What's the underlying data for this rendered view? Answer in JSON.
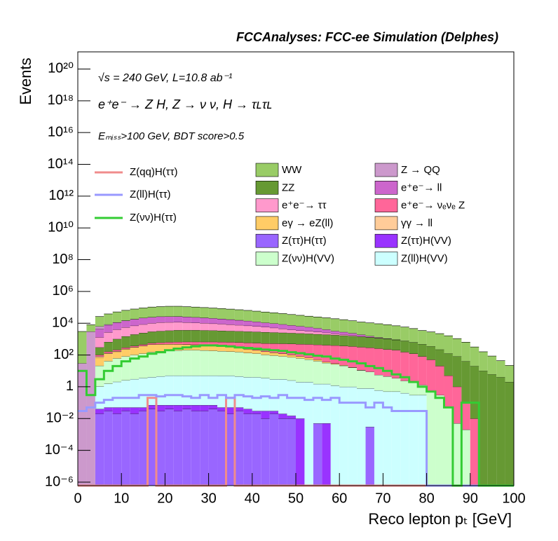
{
  "chart_data": {
    "type": "stacked_histogram",
    "title": "FCCAnalyses: FCC-ee Simulation (Delphes)",
    "annotations": [
      "√s = 240 GeV, L=10.8 ab⁻¹",
      "e⁺e⁻ → Z H, Z → ν ν, H → τʟτʟ",
      "Eₘᵢₛₛ>100 GeV, BDT score>0.5"
    ],
    "xlabel": "Reco lepton pₜ [GeV]",
    "ylabel": "Events",
    "log_y": true,
    "xlim": [
      0,
      100
    ],
    "xticks": [
      0,
      10,
      20,
      30,
      40,
      50,
      60,
      70,
      80,
      90,
      100
    ],
    "ylim": [
      6e-07,
      1.2e+21
    ],
    "yticks": [
      {
        "value": 1e-06,
        "label": "10⁻⁶"
      },
      {
        "value": 0.0001,
        "label": "10⁻⁴"
      },
      {
        "value": 0.01,
        "label": "10⁻²"
      },
      1,
      {
        "value": 100,
        "label": "10²"
      },
      {
        "value": 10000.0,
        "label": "10⁴"
      },
      {
        "value": 1000000.0,
        "label": "10⁶"
      },
      {
        "value": 100000000.0,
        "label": "10⁸"
      },
      {
        "value": 10000000000.0,
        "label": "10¹⁰"
      },
      {
        "value": 1000000000000.0,
        "label": "10¹²"
      },
      {
        "value": 100000000000000.0,
        "label": "10¹⁴"
      },
      {
        "value": 1e+16,
        "label": "10¹⁶"
      },
      {
        "value": 1e+18,
        "label": "10¹⁸"
      },
      {
        "value": 1e+20,
        "label": "10²⁰"
      }
    ],
    "bins": [
      0,
      2,
      4,
      6,
      8,
      10,
      12,
      14,
      16,
      18,
      20,
      22,
      24,
      26,
      28,
      30,
      32,
      34,
      36,
      38,
      40,
      42,
      44,
      46,
      48,
      50,
      52,
      54,
      56,
      58,
      60,
      62,
      64,
      66,
      68,
      70,
      72,
      74,
      76,
      78,
      80,
      82,
      84,
      86,
      88,
      90,
      92,
      94,
      96,
      98,
      100
    ],
    "series": [
      {
        "name": "Z(ττ)H(ττ)",
        "color": "#9966ff",
        "values": [
          0,
          0,
          0.02,
          0.03,
          0.02,
          0.03,
          0.02,
          0.03,
          0.04,
          0.03,
          0.04,
          0.03,
          0.04,
          0.03,
          0.03,
          0.04,
          0.03,
          0.02,
          0.03,
          0.02,
          0.02,
          0.01,
          0.02,
          0.01,
          0.01,
          0,
          0,
          0.005,
          0,
          0,
          0,
          0,
          0,
          0.003,
          0,
          0,
          0,
          0,
          0,
          0,
          0,
          0,
          0,
          0,
          0,
          0,
          0,
          0,
          0,
          0
        ]
      },
      {
        "name": "Z(ττ)H(VV)",
        "color": "#9933ff",
        "values": [
          0,
          0,
          0.02,
          0.02,
          0.03,
          0.02,
          0.03,
          0.02,
          0.03,
          0.04,
          0.03,
          0.04,
          0.03,
          0.04,
          0.04,
          0.03,
          0.02,
          0.03,
          0.02,
          0.02,
          0.01,
          0.02,
          0.01,
          0.01,
          0.005,
          0.01,
          0,
          0,
          0.005,
          0,
          0,
          0,
          0,
          0,
          0,
          0,
          0,
          0,
          0,
          0,
          0,
          0,
          0,
          0,
          0,
          0,
          0,
          0,
          0,
          0
        ]
      },
      {
        "name": "Z(ll)H(VV)",
        "color": "#ccffff",
        "values": [
          0,
          0,
          1,
          1.5,
          2,
          2.5,
          3,
          3.5,
          4,
          4.5,
          5,
          5,
          5,
          5,
          5,
          5,
          5,
          5,
          4.5,
          4,
          4,
          3.5,
          3,
          3,
          2.5,
          2,
          2,
          1.5,
          1.5,
          1.2,
          1,
          1,
          0.8,
          0.8,
          0.6,
          0.5,
          0.5,
          0.4,
          0.3,
          0.3,
          0,
          0,
          0,
          0,
          0,
          0,
          0,
          0,
          0,
          0
        ]
      },
      {
        "name": "Z(νν)H(VV)",
        "color": "#ccffcc",
        "values": [
          0,
          0,
          20,
          40,
          60,
          80,
          100,
          120,
          150,
          170,
          180,
          190,
          200,
          200,
          190,
          180,
          170,
          160,
          150,
          130,
          120,
          100,
          90,
          80,
          70,
          60,
          50,
          40,
          30,
          25,
          20,
          15,
          10,
          8,
          5,
          4,
          3,
          2,
          1.5,
          1,
          0.5,
          0.3,
          0.05,
          0.005,
          0.002,
          0,
          0,
          0,
          0,
          0
        ]
      },
      {
        "name": "eγ → eZ(ll)",
        "color": "#ffcc66",
        "values": [
          0,
          0,
          50,
          80,
          100,
          150,
          200,
          250,
          300,
          300,
          300,
          280,
          260,
          240,
          220,
          200,
          180,
          150,
          120,
          100,
          80,
          60,
          50,
          40,
          30,
          20,
          15,
          10,
          5,
          3,
          2,
          1,
          0.5,
          0,
          0,
          0,
          0,
          0,
          0,
          0,
          0,
          0,
          0,
          0,
          0,
          0,
          0,
          0,
          0,
          0
        ]
      },
      {
        "name": "γγ → ll",
        "color": "#ffcc99",
        "values": [
          0,
          0,
          10,
          10,
          10,
          10,
          10,
          8,
          8,
          8,
          6,
          6,
          5,
          5,
          4,
          4,
          3,
          3,
          2,
          2,
          1,
          1,
          1,
          0.5,
          0.5,
          0,
          0,
          0,
          0,
          0,
          0,
          0,
          0,
          0,
          0,
          0,
          0,
          0,
          0,
          0,
          0,
          0,
          0,
          0,
          0,
          0,
          0,
          0,
          0,
          0
        ]
      },
      {
        "name": "e⁺e⁻→ νₑνₑ Z",
        "color": "#ff6699",
        "values": [
          0,
          0,
          20,
          30,
          40,
          50,
          60,
          80,
          100,
          120,
          150,
          180,
          200,
          220,
          250,
          280,
          300,
          320,
          340,
          350,
          360,
          370,
          380,
          390,
          400,
          400,
          400,
          390,
          380,
          370,
          350,
          330,
          300,
          280,
          250,
          220,
          200,
          150,
          120,
          80,
          50,
          20,
          5,
          1,
          0.1,
          0.01,
          0,
          0,
          0,
          0
        ]
      },
      {
        "name": "ZZ",
        "color": "#669933",
        "values": [
          0,
          0,
          200,
          500,
          800,
          1200,
          1600,
          2000,
          2400,
          2600,
          2800,
          3000,
          3000,
          3000,
          2900,
          2800,
          2700,
          2600,
          2500,
          2400,
          2300,
          2200,
          2100,
          2000,
          1900,
          1800,
          1700,
          1600,
          1500,
          1400,
          1300,
          1200,
          1100,
          1000,
          900,
          800,
          700,
          600,
          500,
          400,
          300,
          200,
          120,
          80,
          40,
          20,
          10,
          6,
          4,
          2
        ]
      },
      {
        "name": "e⁺e⁻→ ττ",
        "color": "#ff99cc",
        "values": [
          0,
          0,
          1000,
          2000,
          3000,
          4000,
          5000,
          6000,
          7000,
          8000,
          8000,
          8000,
          7500,
          7000,
          6500,
          6000,
          5500,
          5000,
          4500,
          4000,
          3500,
          3000,
          2500,
          2000,
          1500,
          1200,
          1000,
          800,
          600,
          400,
          300,
          200,
          100,
          50,
          20,
          10,
          5,
          2,
          1,
          0,
          0,
          0,
          0,
          0,
          0,
          0,
          0,
          0,
          0,
          0
        ]
      },
      {
        "name": "e⁺e⁻→ ll",
        "color": "#cc66cc",
        "values": [
          0,
          0,
          3000,
          5000,
          7000,
          9000,
          11000,
          13000,
          14000,
          15000,
          15000,
          15000,
          14000,
          13000,
          12000,
          11000,
          10000,
          9000,
          8000,
          7000,
          6000,
          5000,
          4500,
          4000,
          3500,
          3000,
          2500,
          2000,
          1500,
          1000,
          800,
          600,
          400,
          200,
          100,
          50,
          20,
          10,
          0,
          0,
          0,
          0,
          0,
          0,
          0,
          0,
          0,
          0,
          0,
          0
        ]
      },
      {
        "name": "Z → QQ",
        "color": "#cc99cc",
        "values": [
          30,
          3000,
          2000,
          800,
          400,
          300,
          200,
          150,
          100,
          80,
          60,
          50,
          40,
          30,
          20,
          10,
          5,
          2,
          1,
          0,
          0,
          0,
          0,
          0,
          0,
          0,
          0,
          0,
          0,
          0,
          0,
          0,
          0,
          0,
          0,
          0,
          0,
          0,
          0,
          0,
          0,
          0,
          0,
          0,
          0,
          0,
          0,
          0,
          0,
          0
        ]
      },
      {
        "name": "WW",
        "color": "#99cc66",
        "values": [
          3000,
          5000,
          20000,
          30000,
          40000,
          50000,
          60000,
          70000,
          80000,
          85000,
          90000,
          90000,
          85000,
          80000,
          75000,
          70000,
          65000,
          60000,
          55000,
          50000,
          45000,
          40000,
          36000,
          32000,
          28000,
          25000,
          22000,
          20000,
          18000,
          16000,
          14000,
          12000,
          10000,
          9000,
          8000,
          7000,
          6000,
          5000,
          4000,
          3000,
          2500,
          2000,
          1500,
          1000,
          600,
          300,
          150,
          80,
          40,
          20
        ]
      }
    ],
    "signals": [
      {
        "name": "Z(qq)H(ττ)",
        "color": "#f08c8c",
        "values": [
          0,
          0,
          0,
          0,
          0,
          0,
          0,
          0,
          0.2,
          0,
          0,
          0,
          0,
          0,
          0,
          0,
          0,
          0.2,
          0,
          0,
          0,
          0,
          0,
          0,
          0,
          0,
          0,
          0,
          0,
          0,
          0,
          0,
          0,
          0,
          0,
          0,
          0,
          0,
          0,
          0,
          0,
          0,
          0,
          0,
          0,
          0,
          0,
          0,
          0,
          0
        ]
      },
      {
        "name": "Z(ll)H(ττ)",
        "color": "#9999ff",
        "values": [
          0.03,
          0.05,
          0.1,
          0.15,
          0.2,
          0.2,
          0.2,
          0.3,
          0.3,
          0.25,
          0.3,
          0.3,
          0.25,
          0.2,
          0.3,
          0.2,
          0.3,
          0.2,
          0.3,
          0.25,
          0.2,
          0.25,
          0.2,
          0.3,
          0.2,
          0.2,
          0.15,
          0.2,
          0.15,
          0.2,
          0.1,
          0.1,
          0.1,
          0.05,
          0.1,
          0.05,
          0.03,
          0.03,
          0.03,
          0.03,
          0,
          0,
          0,
          0,
          0,
          0,
          0,
          0,
          0,
          0
        ]
      },
      {
        "name": "Z(νν)H(ττ)",
        "color": "#33cc33",
        "values": [
          10,
          0.3,
          3,
          10,
          20,
          40,
          60,
          80,
          120,
          150,
          200,
          250,
          300,
          350,
          400,
          400,
          380,
          350,
          300,
          280,
          250,
          220,
          200,
          180,
          150,
          130,
          110,
          90,
          80,
          60,
          50,
          40,
          30,
          20,
          15,
          10,
          6,
          4,
          2,
          1,
          0.5,
          0.2,
          0.05,
          0,
          0.1,
          0.1,
          0,
          0,
          0,
          0
        ]
      }
    ]
  }
}
